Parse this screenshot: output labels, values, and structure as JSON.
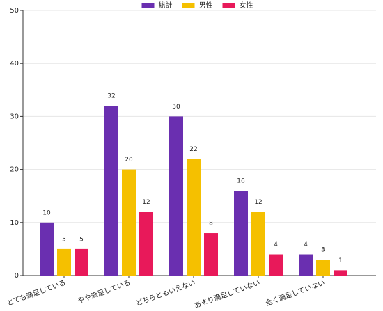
{
  "chart_data": {
    "type": "bar",
    "categories": [
      "とても満足している",
      "やや満足している",
      "どちらともいえない",
      "あまり満足していない",
      "全く満足していない"
    ],
    "series": [
      {
        "name": "総計",
        "color": "#6a2fb0",
        "values": [
          10,
          32,
          30,
          16,
          4
        ]
      },
      {
        "name": "男性",
        "color": "#f5c000",
        "values": [
          5,
          20,
          22,
          12,
          3
        ]
      },
      {
        "name": "女性",
        "color": "#e8195a",
        "values": [
          5,
          12,
          8,
          4,
          1
        ]
      }
    ],
    "ylim": [
      0,
      50
    ],
    "yticks": [
      0,
      10,
      20,
      30,
      40,
      50
    ],
    "grid": true,
    "legend": "upper center"
  }
}
